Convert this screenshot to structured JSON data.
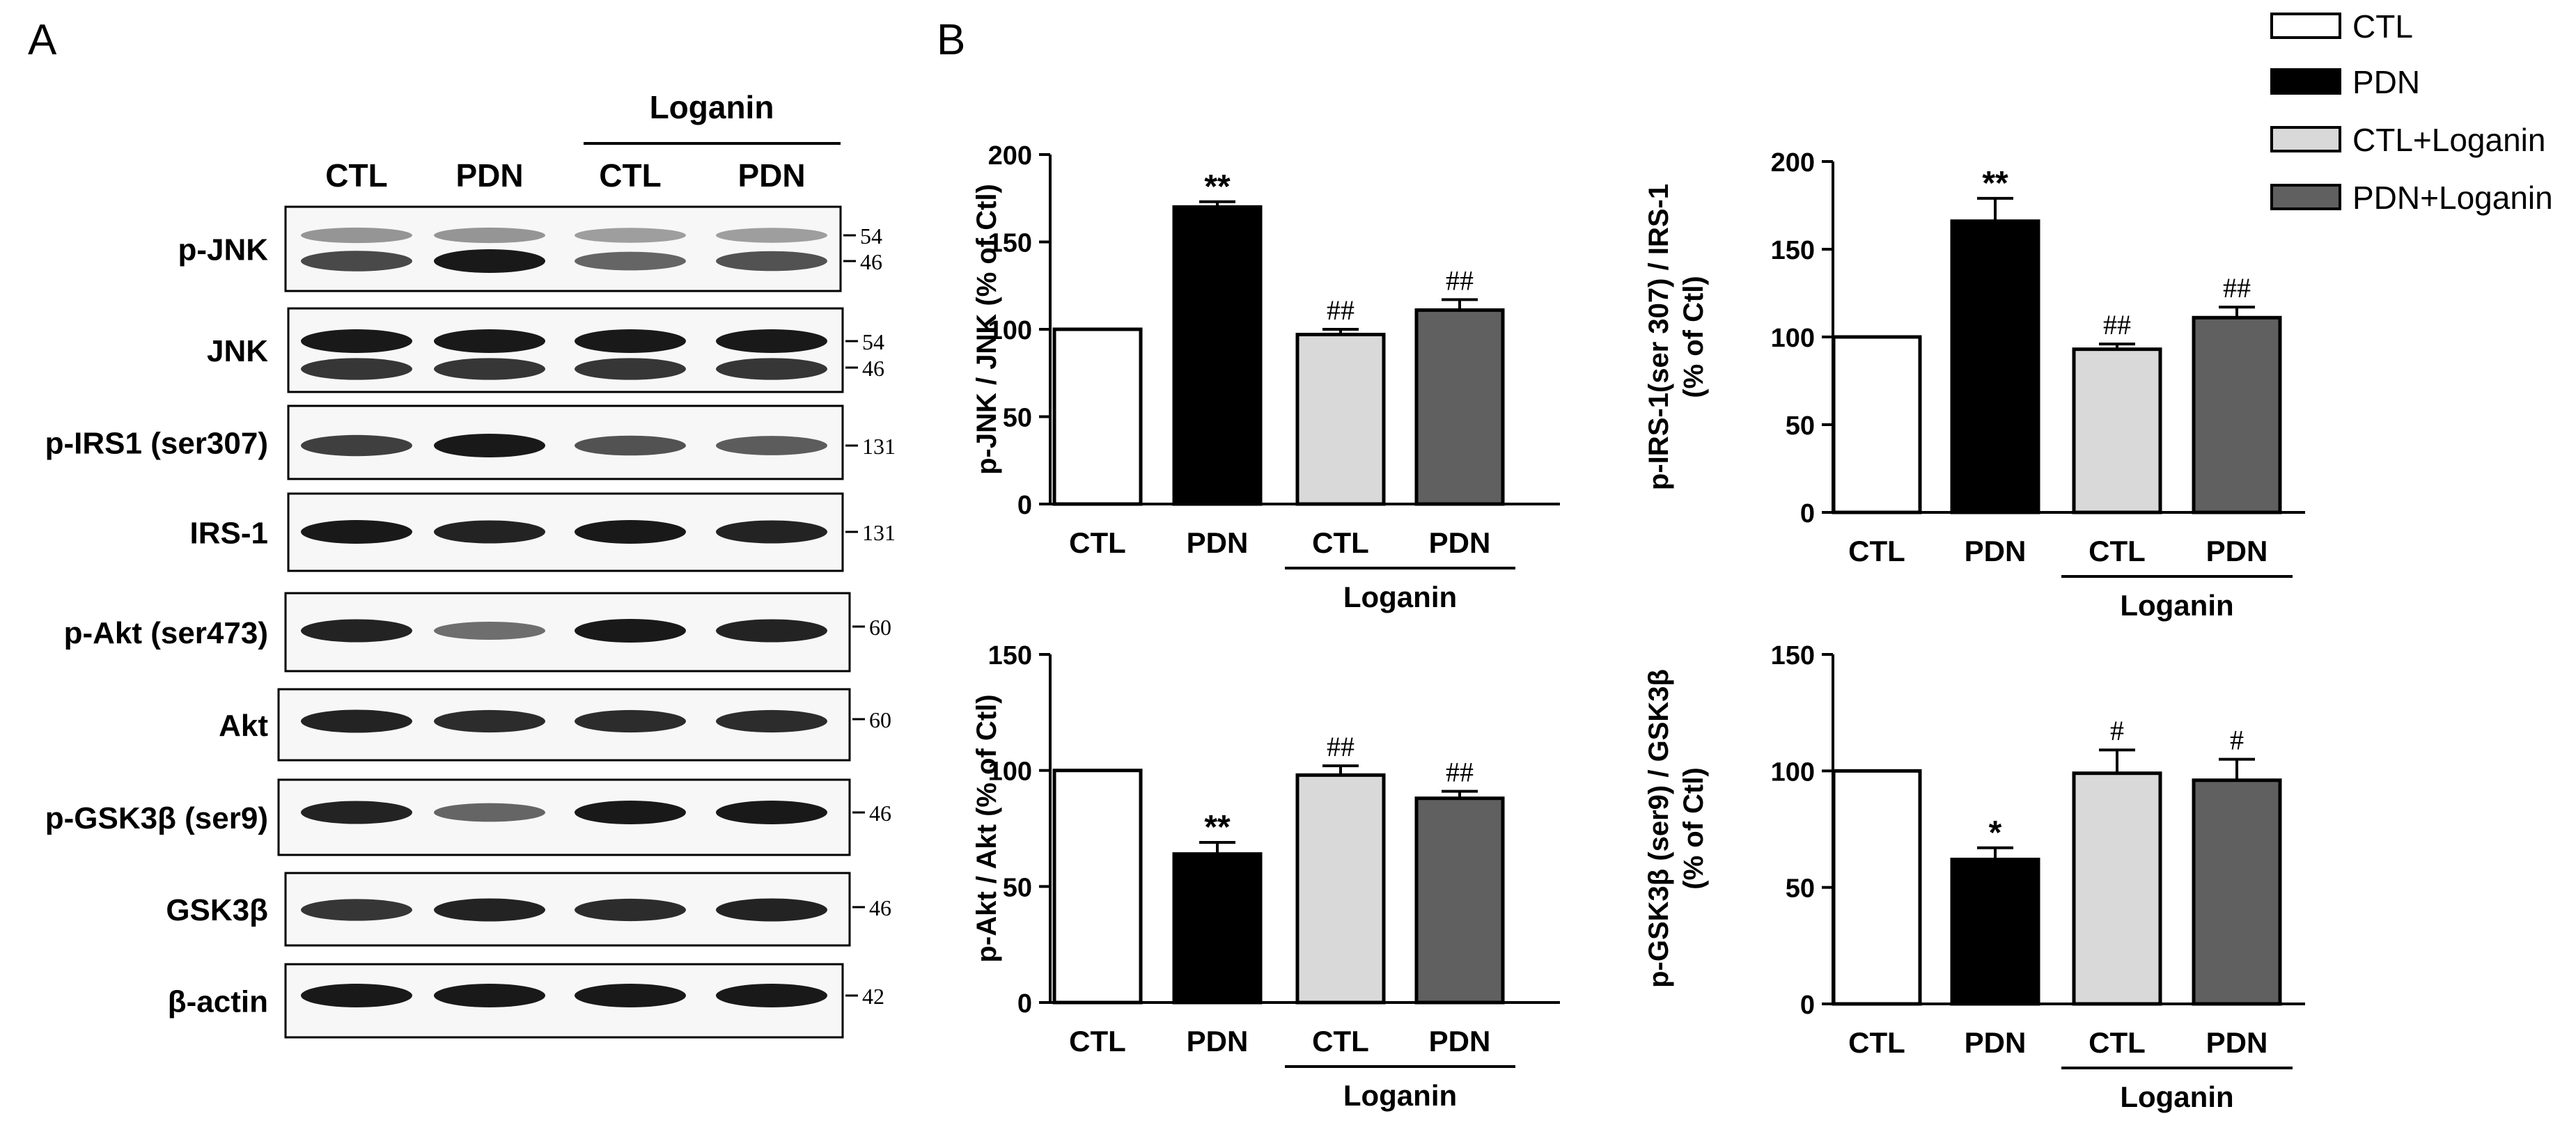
{
  "panel_a": {
    "label": "A",
    "treatment_group": "Loganin",
    "lanes": [
      "CTL",
      "PDN",
      "CTL",
      "PDN"
    ],
    "blots": [
      {
        "name": "p-JNK",
        "markers": [
          "54",
          "46"
        ],
        "intensity": [
          [
            0.35,
            0.35,
            0.3,
            0.3
          ],
          [
            0.75,
            1.0,
            0.6,
            0.7
          ]
        ]
      },
      {
        "name": "JNK",
        "markers": [
          "54",
          "46"
        ],
        "intensity": [
          [
            1.0,
            1.0,
            1.0,
            1.0
          ],
          [
            0.85,
            0.85,
            0.85,
            0.85
          ]
        ]
      },
      {
        "name": "p-IRS1 (ser307)",
        "markers": [
          "131"
        ],
        "intensity": [
          [
            0.8,
            1.0,
            0.7,
            0.65
          ]
        ]
      },
      {
        "name": "IRS-1",
        "markers": [
          "131"
        ],
        "intensity": [
          [
            1.0,
            0.95,
            1.0,
            0.95
          ]
        ]
      },
      {
        "name": "p-Akt (ser473)",
        "markers": [
          "60"
        ],
        "intensity": [
          [
            0.95,
            0.55,
            1.0,
            0.95
          ]
        ]
      },
      {
        "name": "Akt",
        "markers": [
          "60"
        ],
        "intensity": [
          [
            0.95,
            0.9,
            0.9,
            0.9
          ]
        ]
      },
      {
        "name": "p-GSK3β (ser9)",
        "markers": [
          "46"
        ],
        "intensity": [
          [
            0.95,
            0.6,
            1.0,
            1.0
          ]
        ]
      },
      {
        "name": "GSK3β",
        "markers": [
          "46"
        ],
        "intensity": [
          [
            0.85,
            0.95,
            0.9,
            0.95
          ]
        ]
      },
      {
        "name": "β-actin",
        "markers": [
          "42"
        ],
        "intensity": [
          [
            1.0,
            1.0,
            1.0,
            1.0
          ]
        ]
      }
    ]
  },
  "panel_b": {
    "label": "B",
    "legend": [
      {
        "label": "CTL",
        "color": "#ffffff"
      },
      {
        "label": "PDN",
        "color": "#000000"
      },
      {
        "label": "CTL+Loganin",
        "color": "#d9d9d9"
      },
      {
        "label": "PDN+Loganin",
        "color": "#606060"
      }
    ]
  },
  "chart_data": [
    {
      "type": "bar",
      "ylabel": "p-JNK / JNK (% of Ctl)",
      "ylim": [
        0,
        200
      ],
      "yticks": [
        "0",
        "50",
        "100",
        "150",
        "200"
      ],
      "categories": [
        "CTL",
        "PDN",
        "CTL",
        "PDN"
      ],
      "group_label": "Loganin",
      "values": [
        100,
        170,
        97,
        111
      ],
      "errors": [
        0,
        3,
        3,
        6
      ],
      "annotations": [
        "",
        "**",
        "##",
        "##"
      ],
      "colors": [
        "#ffffff",
        "#000000",
        "#d9d9d9",
        "#606060"
      ]
    },
    {
      "type": "bar",
      "ylabel": "p-IRS-1(ser 307) / IRS-1 (% of Ctl)",
      "ylim": [
        0,
        200
      ],
      "yticks": [
        "0",
        "50",
        "100",
        "150",
        "200"
      ],
      "categories": [
        "CTL",
        "PDN",
        "CTL",
        "PDN"
      ],
      "group_label": "Loganin",
      "values": [
        100,
        166,
        93,
        111
      ],
      "errors": [
        0,
        13,
        3,
        6
      ],
      "annotations": [
        "",
        "**",
        "##",
        "##"
      ],
      "colors": [
        "#ffffff",
        "#000000",
        "#d9d9d9",
        "#606060"
      ]
    },
    {
      "type": "bar",
      "ylabel": "p-Akt / Akt (% of Ctl)",
      "ylim": [
        0,
        150
      ],
      "yticks": [
        "0",
        "50",
        "100",
        "150"
      ],
      "categories": [
        "CTL",
        "PDN",
        "CTL",
        "PDN"
      ],
      "group_label": "Loganin",
      "values": [
        100,
        64,
        98,
        88
      ],
      "errors": [
        0,
        5,
        4,
        3
      ],
      "annotations": [
        "",
        "**",
        "##",
        "##"
      ],
      "colors": [
        "#ffffff",
        "#000000",
        "#d9d9d9",
        "#606060"
      ]
    },
    {
      "type": "bar",
      "ylabel": "p-GSK3β (ser9) / GSK3β (% of Ctl)",
      "ylim": [
        0,
        150
      ],
      "yticks": [
        "0",
        "50",
        "100",
        "150"
      ],
      "categories": [
        "CTL",
        "PDN",
        "CTL",
        "PDN"
      ],
      "group_label": "Loganin",
      "values": [
        100,
        62,
        99,
        96
      ],
      "errors": [
        0,
        5,
        10,
        9
      ],
      "annotations": [
        "",
        "*",
        "#",
        "#"
      ],
      "colors": [
        "#ffffff",
        "#000000",
        "#d9d9d9",
        "#606060"
      ]
    }
  ]
}
